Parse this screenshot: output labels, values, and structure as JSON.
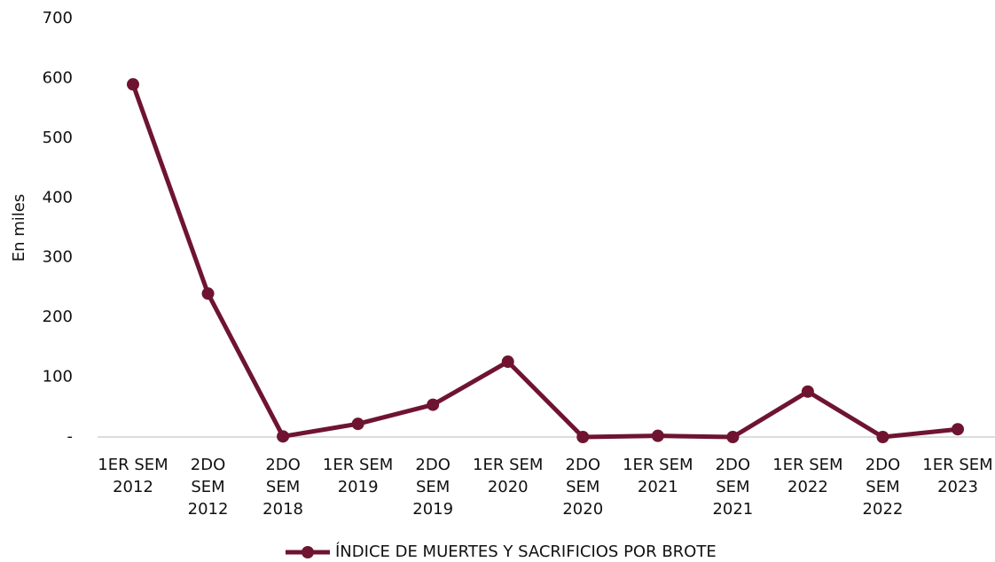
{
  "chart_data": {
    "type": "line",
    "ylabel": "En miles",
    "categories": [
      "1ER SEM\n2012",
      "2DO\nSEM\n2012",
      "2DO\nSEM\n2018",
      "1ER SEM\n2019",
      "2DO\nSEM\n2019",
      "1ER SEM\n2020",
      "2DO\nSEM\n2020",
      "1ER SEM\n2021",
      "2DO\nSEM\n2021",
      "1ER SEM\n2022",
      "2DO\nSEM\n2022",
      "1ER SEM\n2023"
    ],
    "series": [
      {
        "name": "ÍNDICE DE MUERTES Y SACRIFICIOS POR BROTE",
        "color": "#6e1431",
        "values": [
          590,
          240,
          1,
          22,
          54,
          126,
          0,
          2,
          0,
          76,
          0,
          13
        ]
      }
    ],
    "ylim": [
      0,
      700
    ],
    "yticks": [
      {
        "value": 0,
        "label": "-"
      },
      100,
      200,
      300,
      400,
      500,
      600,
      700
    ],
    "grid": false,
    "legend": "bottom"
  }
}
